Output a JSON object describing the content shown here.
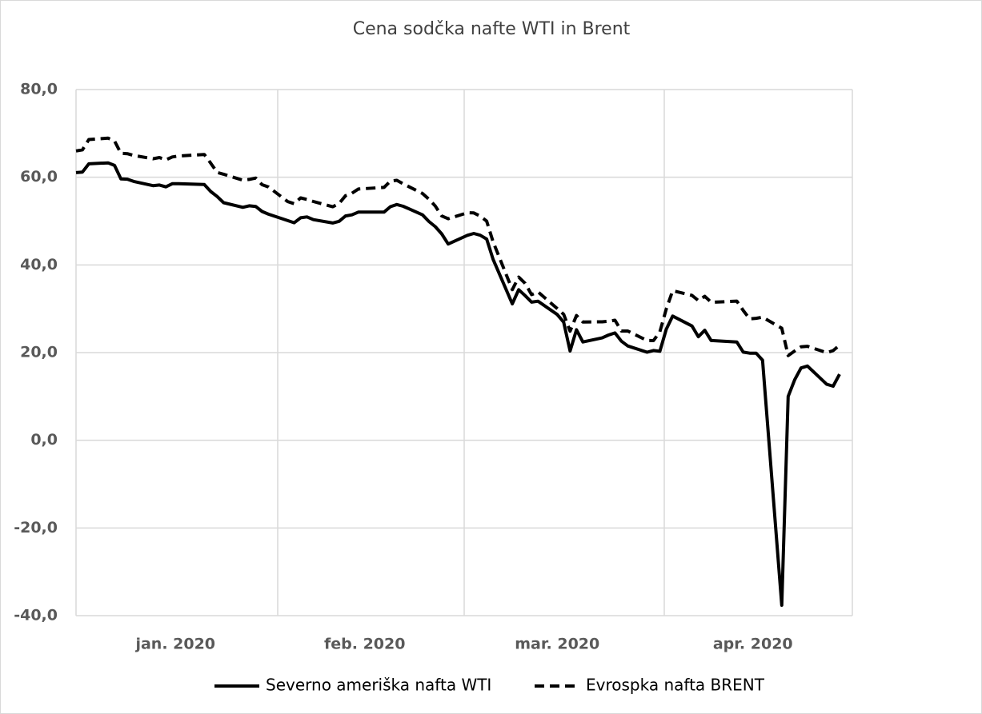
{
  "chart_data": {
    "type": "line",
    "title": "Cena sodčka nafte WTI in Brent",
    "x": [
      0,
      1,
      2,
      5,
      6,
      7,
      8,
      9,
      12,
      13,
      14,
      15,
      16,
      20,
      21,
      22,
      23,
      26,
      27,
      28,
      29,
      30,
      33,
      34,
      35,
      36,
      37,
      40,
      41,
      42,
      43,
      44,
      48,
      49,
      50,
      51,
      54,
      55,
      56,
      57,
      58,
      61,
      62,
      63,
      64,
      65,
      68,
      69,
      70,
      71,
      72,
      75,
      76,
      77,
      78,
      79,
      82,
      83,
      84,
      85,
      86,
      89,
      90,
      91,
      92,
      93,
      96,
      97,
      98,
      99,
      103,
      104,
      105,
      106,
      107,
      110,
      111,
      112,
      113,
      114,
      117,
      118,
      119
    ],
    "xlim": [
      0,
      121
    ],
    "xticks": [
      {
        "value": 15.5,
        "label": "jan. 2020"
      },
      {
        "value": 45,
        "label": "feb. 2020"
      },
      {
        "value": 75,
        "label": "mar. 2020"
      },
      {
        "value": 105.5,
        "label": "apr. 2020"
      }
    ],
    "ylim": [
      -40,
      80
    ],
    "yticks": [
      {
        "value": -40,
        "label": "-40,0"
      },
      {
        "value": -20,
        "label": "-20,0"
      },
      {
        "value": 0,
        "label": "0,0"
      },
      {
        "value": 20,
        "label": "20,0"
      },
      {
        "value": 40,
        "label": "40,0"
      },
      {
        "value": 60,
        "label": "60,0"
      },
      {
        "value": 80,
        "label": "80,0"
      }
    ],
    "grid": true,
    "series": [
      {
        "name": "Severno ameriška nafta WTI",
        "color": "#000000",
        "dash": "solid",
        "values": [
          61.06,
          61.18,
          63.05,
          63.27,
          62.7,
          59.61,
          59.56,
          59.04,
          58.08,
          58.23,
          57.81,
          58.52,
          58.54,
          58.34,
          56.74,
          55.59,
          54.19,
          53.14,
          53.48,
          53.33,
          52.19,
          51.56,
          50.11,
          49.61,
          50.75,
          50.95,
          50.32,
          49.57,
          49.94,
          51.17,
          51.42,
          52.05,
          52.05,
          53.29,
          53.78,
          53.38,
          51.43,
          49.9,
          48.73,
          47.09,
          44.76,
          46.75,
          47.18,
          46.78,
          45.9,
          41.28,
          31.13,
          34.36,
          32.98,
          31.5,
          31.73,
          28.7,
          26.95,
          20.37,
          25.22,
          22.43,
          23.36,
          24.01,
          24.49,
          22.6,
          21.51,
          20.09,
          20.48,
          20.31,
          25.32,
          28.34,
          26.08,
          23.63,
          25.09,
          22.76,
          22.41,
          20.11,
          19.87,
          19.87,
          18.27,
          -37.63,
          10.01,
          13.78,
          16.5,
          16.94,
          12.78,
          12.34,
          15.06
        ]
      },
      {
        "name": "Evrospka nafta BRENT",
        "color": "#000000",
        "dash": "dashed",
        "values": [
          66.0,
          66.25,
          68.6,
          68.91,
          68.27,
          65.44,
          65.37,
          64.98,
          64.2,
          64.49,
          63.95,
          64.62,
          64.85,
          65.2,
          63.21,
          61.08,
          60.69,
          59.32,
          59.51,
          59.81,
          58.29,
          57.77,
          54.45,
          53.96,
          55.28,
          54.93,
          54.47,
          53.27,
          54.01,
          55.79,
          56.34,
          57.32,
          57.67,
          59.12,
          59.31,
          58.5,
          56.3,
          55.0,
          53.43,
          51.17,
          50.52,
          51.9,
          51.86,
          51.13,
          49.99,
          45.27,
          34.36,
          37.22,
          35.79,
          33.22,
          33.85,
          30.05,
          28.73,
          24.88,
          28.47,
          26.98,
          27.03,
          27.15,
          27.39,
          24.93,
          24.93,
          22.76,
          22.74,
          24.74,
          29.94,
          34.11,
          33.05,
          31.87,
          32.84,
          31.48,
          31.74,
          29.6,
          27.69,
          27.82,
          28.08,
          25.57,
          19.33,
          20.37,
          21.33,
          21.44,
          19.99,
          20.46,
          21.7
        ]
      }
    ]
  }
}
